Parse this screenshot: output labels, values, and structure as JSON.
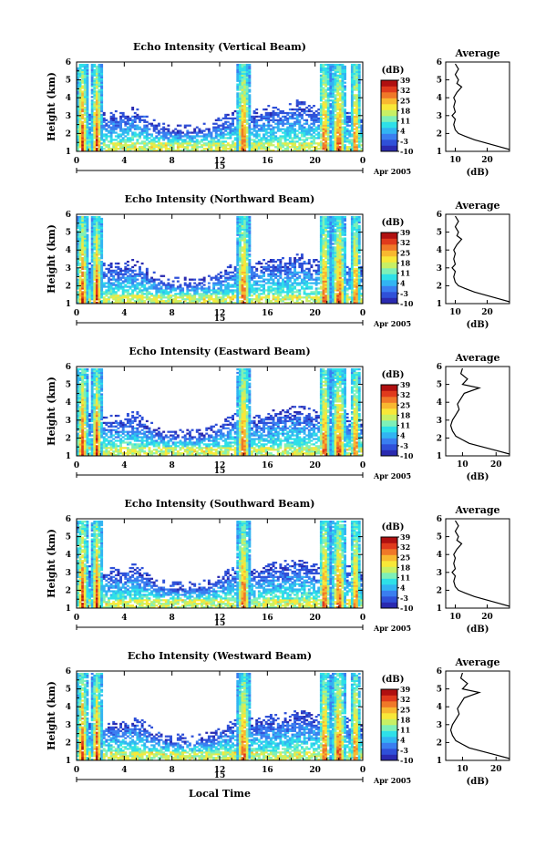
{
  "figure": {
    "xlabel": "Local Time",
    "date_label": "Apr 2005",
    "day_label": "15"
  },
  "colors": {
    "colormap": [
      "#2a2ab0",
      "#2f50d8",
      "#3a7ef0",
      "#32b4f2",
      "#2ee0e8",
      "#7ef0b8",
      "#c8f064",
      "#f8e838",
      "#f8b830",
      "#f07828",
      "#e03a1c",
      "#b01010"
    ]
  },
  "chart_data": [
    {
      "type": "heatmap",
      "title": "Echo Intensity (Vertical Beam)",
      "ylabel": "Height (km)",
      "xlim": [
        0,
        24
      ],
      "ylim": [
        1,
        6
      ],
      "xticks": [
        "0",
        "4",
        "8",
        "12",
        "16",
        "20",
        "0"
      ],
      "yticks": [
        "1",
        "2",
        "3",
        "4",
        "5",
        "6"
      ],
      "colorbar": {
        "label": "(dB)",
        "range": [
          -10,
          39
        ],
        "ticks": [
          "39",
          "32",
          "25",
          "18",
          "11",
          "4",
          "-3",
          "-10"
        ]
      },
      "average": {
        "title": "Average",
        "xlabel": "(dB)",
        "xticks": [
          "10",
          "20"
        ],
        "yticks": [
          "1",
          "2",
          "3",
          "4",
          "5",
          "6"
        ],
        "xlim": [
          7,
          27
        ],
        "profile": [
          [
            27,
            1.1
          ],
          [
            24,
            1.25
          ],
          [
            20,
            1.45
          ],
          [
            16,
            1.65
          ],
          [
            13,
            1.85
          ],
          [
            11,
            2.0
          ],
          [
            10,
            2.2
          ],
          [
            9.5,
            2.5
          ],
          [
            10,
            2.8
          ],
          [
            9,
            3.0
          ],
          [
            10,
            3.2
          ],
          [
            9.5,
            3.5
          ],
          [
            10,
            3.8
          ],
          [
            9.5,
            4.0
          ],
          [
            10.5,
            4.3
          ],
          [
            12,
            4.6
          ],
          [
            10.5,
            4.8
          ],
          [
            11,
            5.0
          ],
          [
            10,
            5.3
          ],
          [
            11,
            5.6
          ],
          [
            10,
            5.9
          ]
        ]
      }
    },
    {
      "type": "heatmap",
      "title": "Echo Intensity (Northward Beam)",
      "ylabel": "Height (km)",
      "xlim": [
        0,
        24
      ],
      "ylim": [
        1,
        6
      ],
      "xticks": [
        "0",
        "4",
        "8",
        "12",
        "16",
        "20",
        "0"
      ],
      "yticks": [
        "1",
        "2",
        "3",
        "4",
        "5",
        "6"
      ],
      "colorbar": {
        "label": "(dB)",
        "range": [
          -10,
          39
        ],
        "ticks": [
          "39",
          "32",
          "25",
          "18",
          "11",
          "4",
          "-3",
          "-10"
        ]
      },
      "average": {
        "title": "Average",
        "xlabel": "(dB)",
        "xticks": [
          "10",
          "20"
        ],
        "yticks": [
          "1",
          "2",
          "3",
          "4",
          "5",
          "6"
        ],
        "xlim": [
          7,
          27
        ],
        "profile": [
          [
            27,
            1.1
          ],
          [
            24,
            1.25
          ],
          [
            20,
            1.45
          ],
          [
            16,
            1.65
          ],
          [
            13,
            1.85
          ],
          [
            11,
            2.0
          ],
          [
            10,
            2.2
          ],
          [
            9.5,
            2.5
          ],
          [
            10,
            2.8
          ],
          [
            9,
            3.0
          ],
          [
            10,
            3.2
          ],
          [
            9.5,
            3.5
          ],
          [
            10,
            3.8
          ],
          [
            9.5,
            4.0
          ],
          [
            10.5,
            4.3
          ],
          [
            12,
            4.6
          ],
          [
            10.5,
            4.8
          ],
          [
            11,
            5.0
          ],
          [
            10,
            5.3
          ],
          [
            11,
            5.6
          ],
          [
            10,
            5.9
          ]
        ]
      }
    },
    {
      "type": "heatmap",
      "title": "Echo Intensity (Eastward Beam)",
      "ylabel": "Height (km)",
      "xlim": [
        0,
        24
      ],
      "ylim": [
        1,
        6
      ],
      "xticks": [
        "0",
        "4",
        "8",
        "12",
        "16",
        "20",
        "0"
      ],
      "yticks": [
        "1",
        "2",
        "3",
        "4",
        "5",
        "6"
      ],
      "colorbar": {
        "label": "(dB)",
        "range": [
          -10,
          39
        ],
        "ticks": [
          "39",
          "32",
          "25",
          "18",
          "11",
          "4",
          "-3",
          "-10"
        ]
      },
      "average": {
        "title": "Average",
        "xlabel": "(dB)",
        "xticks": [
          "10",
          "20"
        ],
        "yticks": [
          "1",
          "2",
          "3",
          "4",
          "5",
          "6"
        ],
        "xlim": [
          5,
          24
        ],
        "profile": [
          [
            24,
            1.1
          ],
          [
            20,
            1.3
          ],
          [
            16,
            1.5
          ],
          [
            12,
            1.7
          ],
          [
            10,
            1.9
          ],
          [
            8,
            2.1
          ],
          [
            7,
            2.4
          ],
          [
            6.5,
            2.7
          ],
          [
            7,
            3.0
          ],
          [
            8,
            3.3
          ],
          [
            9,
            3.6
          ],
          [
            8.5,
            3.9
          ],
          [
            9.5,
            4.2
          ],
          [
            10.5,
            4.5
          ],
          [
            15,
            4.8
          ],
          [
            10,
            5.0
          ],
          [
            11.5,
            5.3
          ],
          [
            9.5,
            5.6
          ],
          [
            10,
            5.9
          ]
        ]
      }
    },
    {
      "type": "heatmap",
      "title": "Echo Intensity (Southward Beam)",
      "ylabel": "Height (km)",
      "xlim": [
        0,
        24
      ],
      "ylim": [
        1,
        6
      ],
      "xticks": [
        "0",
        "4",
        "8",
        "12",
        "16",
        "20",
        "0"
      ],
      "yticks": [
        "1",
        "2",
        "3",
        "4",
        "5",
        "6"
      ],
      "colorbar": {
        "label": "(dB)",
        "range": [
          -10,
          39
        ],
        "ticks": [
          "39",
          "32",
          "25",
          "18",
          "11",
          "4",
          "-3",
          "-10"
        ]
      },
      "average": {
        "title": "Average",
        "xlabel": "(dB)",
        "xticks": [
          "10",
          "20"
        ],
        "yticks": [
          "1",
          "2",
          "3",
          "4",
          "5",
          "6"
        ],
        "xlim": [
          7,
          27
        ],
        "profile": [
          [
            27,
            1.1
          ],
          [
            24,
            1.25
          ],
          [
            20,
            1.45
          ],
          [
            16,
            1.65
          ],
          [
            13,
            1.85
          ],
          [
            11,
            2.0
          ],
          [
            10,
            2.2
          ],
          [
            9.5,
            2.5
          ],
          [
            10,
            2.8
          ],
          [
            9,
            3.0
          ],
          [
            10,
            3.2
          ],
          [
            9.5,
            3.5
          ],
          [
            10,
            3.8
          ],
          [
            9.5,
            4.0
          ],
          [
            10.5,
            4.3
          ],
          [
            12,
            4.6
          ],
          [
            10.5,
            4.8
          ],
          [
            11,
            5.0
          ],
          [
            10,
            5.3
          ],
          [
            11,
            5.6
          ],
          [
            10,
            5.9
          ]
        ]
      }
    },
    {
      "type": "heatmap",
      "title": "Echo Intensity (Westward Beam)",
      "ylabel": "Height (km)",
      "xlim": [
        0,
        24
      ],
      "ylim": [
        1,
        6
      ],
      "xticks": [
        "0",
        "4",
        "8",
        "12",
        "16",
        "20",
        "0"
      ],
      "yticks": [
        "1",
        "2",
        "3",
        "4",
        "5",
        "6"
      ],
      "colorbar": {
        "label": "(dB)",
        "range": [
          -10,
          39
        ],
        "ticks": [
          "39",
          "32",
          "25",
          "18",
          "11",
          "4",
          "-3",
          "-10"
        ]
      },
      "average": {
        "title": "Average",
        "xlabel": "(dB)",
        "xticks": [
          "10",
          "20"
        ],
        "yticks": [
          "1",
          "2",
          "3",
          "4",
          "5",
          "6"
        ],
        "xlim": [
          5,
          24
        ],
        "profile": [
          [
            24,
            1.1
          ],
          [
            20,
            1.3
          ],
          [
            16,
            1.5
          ],
          [
            12,
            1.7
          ],
          [
            10,
            1.9
          ],
          [
            8,
            2.1
          ],
          [
            7,
            2.4
          ],
          [
            6.5,
            2.7
          ],
          [
            7,
            3.0
          ],
          [
            8,
            3.3
          ],
          [
            9,
            3.6
          ],
          [
            8.5,
            3.9
          ],
          [
            9.5,
            4.2
          ],
          [
            10.5,
            4.5
          ],
          [
            15,
            4.8
          ],
          [
            10,
            5.0
          ],
          [
            11.5,
            5.3
          ],
          [
            9.5,
            5.6
          ],
          [
            10,
            5.9
          ]
        ]
      }
    }
  ]
}
